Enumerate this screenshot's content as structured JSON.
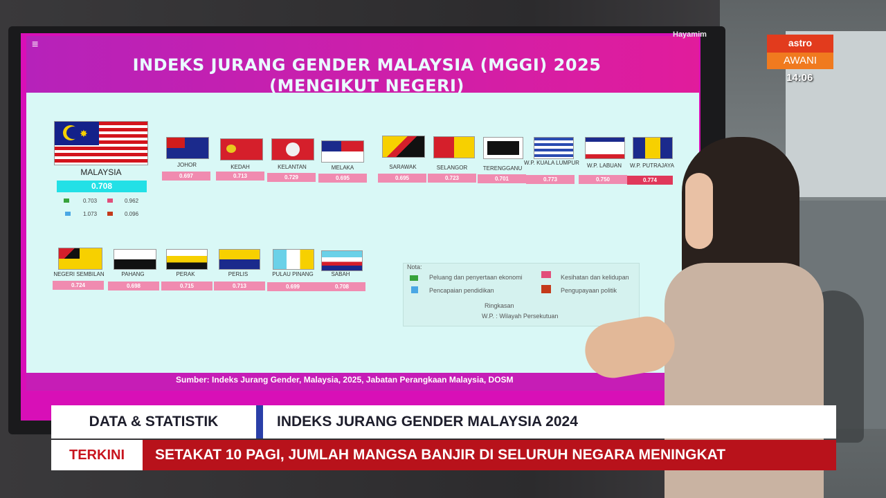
{
  "screen": {
    "corner_label": "Hayamim",
    "title_line1": "INDEKS JURANG GENDER MALAYSIA (MGGI) 2025",
    "title_line2": "(MENGIKUT NEGERI)",
    "source": "Sumber:  Indeks Jurang Gender, Malaysia, 2025, Jabatan Perangkaan Malaysia, DOSM",
    "malaysia": {
      "name": "MALAYSIA",
      "score": "0.708",
      "economy": "0.703",
      "health": "0.962",
      "education": "1.073",
      "politics": "0.096"
    },
    "states_row1": [
      {
        "name": "JOHOR",
        "score": "0.697"
      },
      {
        "name": "KEDAH",
        "score": "0.713"
      },
      {
        "name": "KELANTAN",
        "score": "0.729"
      },
      {
        "name": "MELAKA",
        "score": "0.695"
      },
      {
        "name": "SARAWAK",
        "score": "0.695"
      },
      {
        "name": "SELANGOR",
        "score": "0.723"
      },
      {
        "name": "TERENGGANU",
        "score": "0.701"
      },
      {
        "name": "W.P. KUALA LUMPUR",
        "score": "0.773"
      },
      {
        "name": "W.P. LABUAN",
        "score": "0.750"
      },
      {
        "name": "W.P. PUTRAJAYA",
        "score": "0.774"
      }
    ],
    "states_row2": [
      {
        "name": "NEGERI SEMBILAN",
        "score": "0.724"
      },
      {
        "name": "PAHANG",
        "score": "0.698"
      },
      {
        "name": "PERAK",
        "score": "0.715"
      },
      {
        "name": "PERLIS",
        "score": "0.713"
      },
      {
        "name": "PULAU PINANG",
        "score": "0.699"
      },
      {
        "name": "SABAH",
        "score": "0.708"
      }
    ],
    "note_title": "Nota:",
    "note_economy": "Peluang dan penyertaan ekonomi",
    "note_education": "Pencapaian pendidikan",
    "note_health": "Kesihatan dan kelidupan",
    "note_politics": "Pengupayaan politik",
    "note_abbr_title": "Ringkasan",
    "note_abbr": "W.P. : Wilayah Persekutuan"
  },
  "channel": {
    "logo_top": "astro",
    "logo_bottom": "AWANI",
    "time": "14:06"
  },
  "lower_third": {
    "category": "DATA & STATISTIK",
    "headline": "INDEKS JURANG GENDER MALAYSIA 2024",
    "breaking_label": "TERKINI",
    "breaking_text": "SETAKAT 10 PAGI, JUMLAH MANGSA BANJIR DI SELURUH NEGARA MENINGKAT"
  },
  "colors": {
    "accent": "#d80fb7",
    "score_row1": "#f08bb0",
    "score_highlight": "#e0385a",
    "breaking": "#b8121b",
    "separator": "#2a3fa8"
  }
}
